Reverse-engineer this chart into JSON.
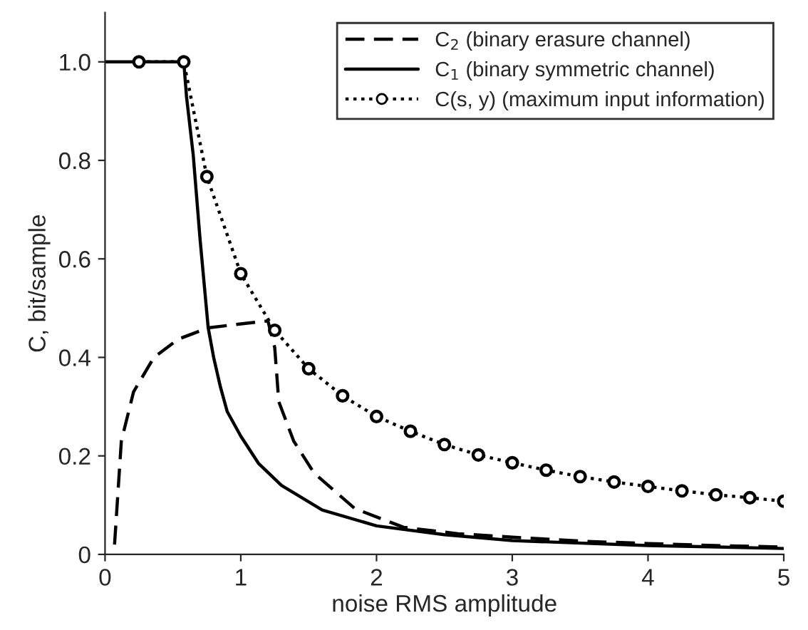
{
  "chart_data": {
    "type": "line",
    "xlabel": "noise RMS amplitude",
    "ylabel": "C, bit/sample",
    "xlim": [
      0,
      5
    ],
    "ylim": [
      0,
      1.1
    ],
    "xticks": [
      0,
      1,
      2,
      3,
      4,
      5
    ],
    "yticks": [
      0,
      0.2,
      0.4,
      0.6,
      0.8,
      {
        "value": 1.0,
        "label": "1.0"
      }
    ],
    "grid": false,
    "legend": "top right",
    "series": [
      {
        "name": "C$_{2}$ (binary erasure channel)",
        "color": "#000000",
        "line_style": "dashed",
        "marker": "none",
        "x": [
          0.07,
          0.12,
          0.21,
          0.36,
          0.54,
          0.76,
          1.0,
          1.2,
          1.25,
          1.28,
          1.39,
          1.54,
          1.84,
          2.2,
          2.6,
          3,
          3.5,
          4,
          4.5,
          5
        ],
        "values": [
          0.02,
          0.23,
          0.33,
          0.4,
          0.437,
          0.46,
          0.468,
          0.474,
          0.42,
          0.31,
          0.23,
          0.165,
          0.093,
          0.055,
          0.042,
          0.035,
          0.027,
          0.022,
          0.018,
          0.015
        ]
      },
      {
        "name": "C$_{1}$ (binary symmetric channel)",
        "color": "#000000",
        "line_style": "solid",
        "marker": "none",
        "x": [
          0,
          0.58,
          0.6,
          0.65,
          0.7,
          0.76,
          0.8,
          0.85,
          0.9,
          1.0,
          1.13,
          1.3,
          1.6,
          2,
          2.5,
          3,
          4,
          5
        ],
        "values": [
          1.0,
          1.0,
          0.93,
          0.81,
          0.64,
          0.46,
          0.4,
          0.34,
          0.29,
          0.24,
          0.185,
          0.14,
          0.09,
          0.058,
          0.04,
          0.028,
          0.018,
          0.012
        ]
      },
      {
        "name": "C(s, y) (maximum input information)",
        "color": "#000000",
        "line_style": "dotted",
        "marker": "circle",
        "x": [
          0.25,
          0.58,
          0.75,
          1.0,
          1.25,
          1.5,
          1.75,
          2,
          2.25,
          2.5,
          2.75,
          3,
          3.25,
          3.5,
          3.75,
          4,
          4.25,
          4.5,
          4.75,
          5
        ],
        "values": [
          1.0,
          1.0,
          0.767,
          0.57,
          0.455,
          0.377,
          0.322,
          0.28,
          0.25,
          0.223,
          0.202,
          0.186,
          0.171,
          0.158,
          0.147,
          0.138,
          0.129,
          0.121,
          0.115,
          0.108
        ]
      }
    ]
  }
}
